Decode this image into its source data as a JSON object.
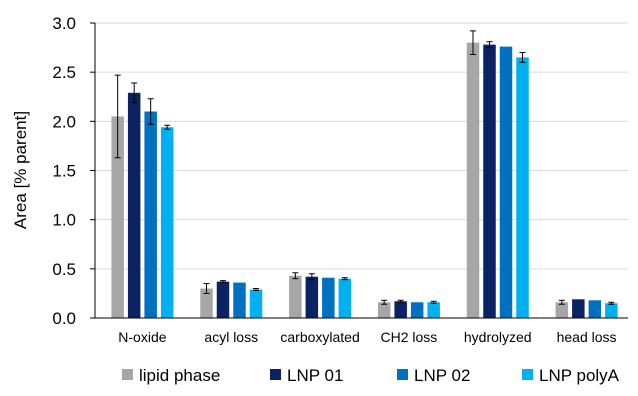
{
  "chart_data": {
    "type": "bar",
    "title": "",
    "xlabel": "",
    "ylabel": "Area [% parent]",
    "ylim": [
      0,
      3.0
    ],
    "yticks": [
      "0.0",
      "0.5",
      "1.0",
      "1.5",
      "2.0",
      "2.5",
      "3.0"
    ],
    "grid": true,
    "legend_position": "bottom",
    "categories": [
      "N-oxide",
      "acyl loss",
      "carboxylated",
      "CH2 loss",
      "hydrolyzed",
      "head loss"
    ],
    "series": [
      {
        "name": "lipid phase",
        "color": "#a6a6a6",
        "values": [
          2.05,
          0.3,
          0.43,
          0.16,
          2.8,
          0.16
        ],
        "errors": [
          0.42,
          0.05,
          0.03,
          0.02,
          0.12,
          0.02
        ]
      },
      {
        "name": "LNP 01",
        "color": "#0b2265",
        "values": [
          2.29,
          0.37,
          0.42,
          0.17,
          2.78,
          0.19
        ],
        "errors": [
          0.1,
          0.01,
          0.03,
          0.01,
          0.03,
          0.0
        ]
      },
      {
        "name": "LNP 02",
        "color": "#0070c0",
        "values": [
          2.1,
          0.36,
          0.41,
          0.16,
          2.76,
          0.18
        ],
        "errors": [
          0.13,
          0.0,
          0.0,
          0.0,
          0.0,
          0.0
        ]
      },
      {
        "name": "LNP polyA",
        "color": "#00b0f0",
        "values": [
          1.94,
          0.29,
          0.4,
          0.16,
          2.65,
          0.15
        ],
        "errors": [
          0.02,
          0.01,
          0.01,
          0.01,
          0.05,
          0.01
        ]
      }
    ]
  }
}
